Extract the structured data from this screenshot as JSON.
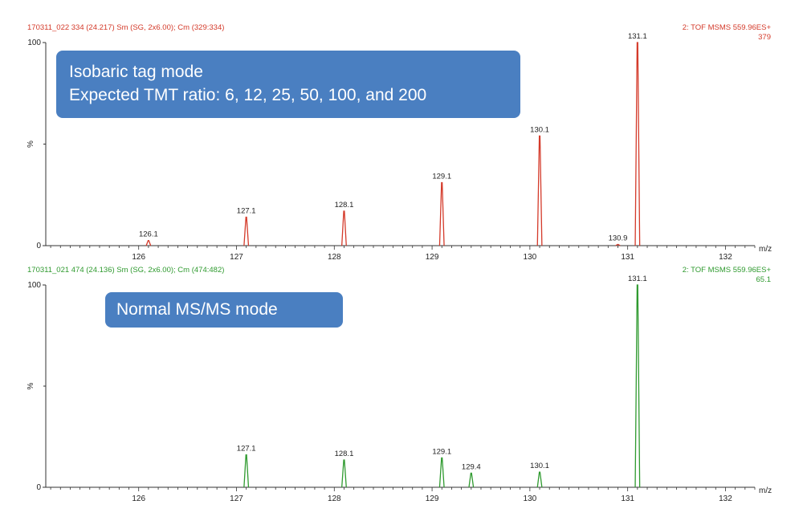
{
  "chart_data": [
    {
      "type": "line",
      "header_left": "170311_022  334 (24.217) Sm (SG, 2x6.00); Cm (329:334)",
      "header_right_line1": "2: TOF MSMS 559.96ES+",
      "header_right_line2": "379",
      "callout_line1": "Isobaric tag mode",
      "callout_line2": "Expected TMT ratio: 6, 12, 25, 50, 100, and 200",
      "color": "#d43a2a",
      "xlabel": "m/z",
      "ylabel": "%",
      "xlim": [
        125.05,
        132.3
      ],
      "ylim": [
        0,
        100
      ],
      "x_ticks": [
        126,
        127,
        128,
        129,
        130,
        131,
        132
      ],
      "y_ticks": [
        0,
        100
      ],
      "peaks": [
        {
          "x": 126.1,
          "y": 2.5,
          "label": "126.1"
        },
        {
          "x": 127.1,
          "y": 14,
          "label": "127.1"
        },
        {
          "x": 128.1,
          "y": 17,
          "label": "128.1"
        },
        {
          "x": 129.1,
          "y": 31,
          "label": "129.1"
        },
        {
          "x": 130.1,
          "y": 54,
          "label": "130.1"
        },
        {
          "x": 130.9,
          "y": 0.6,
          "label": "130.9"
        },
        {
          "x": 131.1,
          "y": 100,
          "label": "131.1"
        }
      ]
    },
    {
      "type": "line",
      "header_left": "170311_021  474 (24.136) Sm (SG, 2x6.00); Cm (474:482)",
      "header_right_line1": "2: TOF MSMS 559.96ES+",
      "header_right_line2": "65.1",
      "callout_line1": "Normal MS/MS mode",
      "color": "#2f9a2f",
      "xlabel": "m/z",
      "ylabel": "%",
      "xlim": [
        125.05,
        132.3
      ],
      "ylim": [
        0,
        100
      ],
      "x_ticks": [
        126,
        127,
        128,
        129,
        130,
        131,
        132
      ],
      "y_ticks": [
        0,
        100
      ],
      "peaks": [
        {
          "x": 127.1,
          "y": 16,
          "label": "127.1"
        },
        {
          "x": 128.1,
          "y": 13.5,
          "label": "128.1"
        },
        {
          "x": 129.1,
          "y": 14.5,
          "label": "129.1"
        },
        {
          "x": 129.4,
          "y": 7,
          "label": "129.4"
        },
        {
          "x": 130.1,
          "y": 7.5,
          "label": "130.1"
        },
        {
          "x": 131.1,
          "y": 100,
          "label": "131.1"
        }
      ]
    }
  ]
}
